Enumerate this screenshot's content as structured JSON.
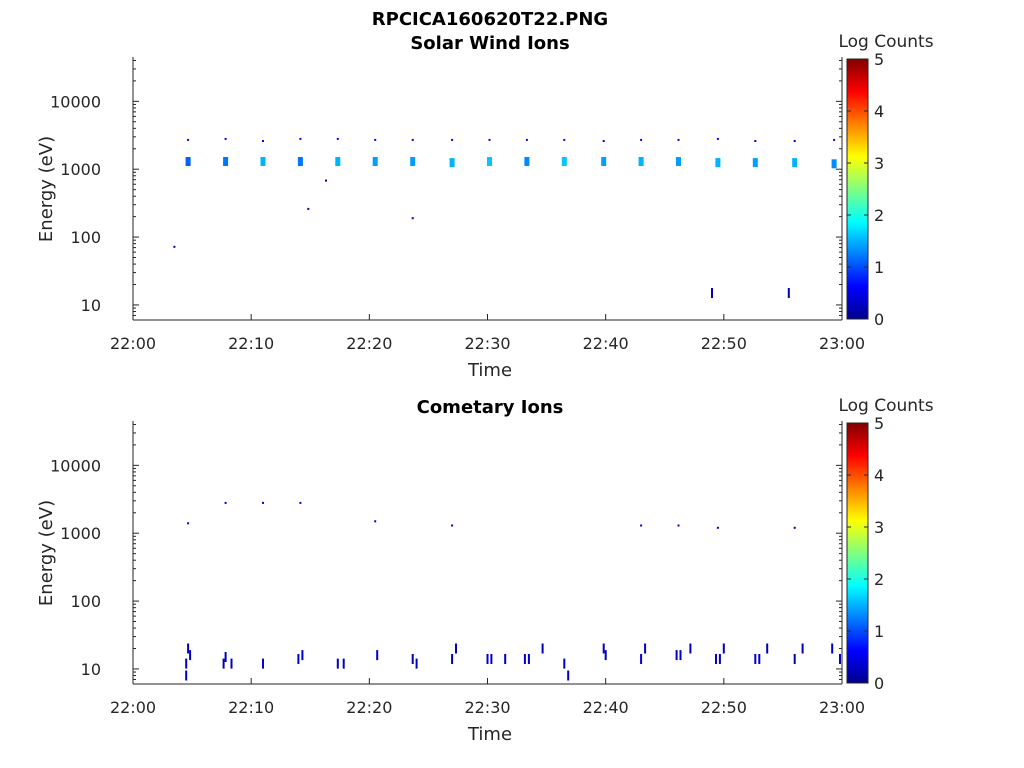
{
  "figure_title": "RPCICA160620T22.PNG",
  "colors": {
    "cmap": "jet",
    "axis": "#262626",
    "background": "#ffffff"
  },
  "chart_data": [
    {
      "type": "heatmap",
      "title": "Solar Wind Ions",
      "xlabel": "Time",
      "ylabel": "Energy (eV)",
      "ylog": true,
      "xlim": [
        "22:00",
        "23:00"
      ],
      "ylim": [
        6,
        45000
      ],
      "x_ticks": [
        "22:00",
        "22:10",
        "22:20",
        "22:30",
        "22:40",
        "22:50",
        "23:00"
      ],
      "y_ticks": [
        "10",
        "100",
        "1000",
        "10000"
      ],
      "colorbar": {
        "label": "Log Counts",
        "min": 0,
        "max": 5,
        "ticks": [
          "0",
          "1",
          "2",
          "3",
          "4",
          "5"
        ]
      },
      "cells": [
        {
          "t": "22:03:30",
          "e": 72,
          "v": 0.3
        },
        {
          "t": "22:04:40",
          "e": 2700,
          "v": 0.6
        },
        {
          "t": "22:04:40",
          "e": 1300,
          "v": 1.1
        },
        {
          "t": "22:07:50",
          "e": 2800,
          "v": 0.6
        },
        {
          "t": "22:07:50",
          "e": 1300,
          "v": 1.2
        },
        {
          "t": "22:11:00",
          "e": 2600,
          "v": 0.6
        },
        {
          "t": "22:11:00",
          "e": 1300,
          "v": 1.5
        },
        {
          "t": "22:14:10",
          "e": 2800,
          "v": 0.6
        },
        {
          "t": "22:14:10",
          "e": 1300,
          "v": 1.2
        },
        {
          "t": "22:14:50",
          "e": 260,
          "v": 0.3
        },
        {
          "t": "22:16:20",
          "e": 680,
          "v": 0.3
        },
        {
          "t": "22:17:20",
          "e": 2800,
          "v": 0.6
        },
        {
          "t": "22:17:20",
          "e": 1300,
          "v": 1.5
        },
        {
          "t": "22:20:30",
          "e": 2700,
          "v": 0.6
        },
        {
          "t": "22:20:30",
          "e": 1300,
          "v": 1.4
        },
        {
          "t": "22:23:40",
          "e": 190,
          "v": 0.3
        },
        {
          "t": "22:23:40",
          "e": 2700,
          "v": 0.6
        },
        {
          "t": "22:23:40",
          "e": 1300,
          "v": 1.4
        },
        {
          "t": "22:27:00",
          "e": 2700,
          "v": 0.6
        },
        {
          "t": "22:27:00",
          "e": 1250,
          "v": 1.5
        },
        {
          "t": "22:30:10",
          "e": 2700,
          "v": 0.6
        },
        {
          "t": "22:30:10",
          "e": 1300,
          "v": 1.6
        },
        {
          "t": "22:33:20",
          "e": 2700,
          "v": 0.6
        },
        {
          "t": "22:33:20",
          "e": 1300,
          "v": 1.3
        },
        {
          "t": "22:36:30",
          "e": 2700,
          "v": 0.6
        },
        {
          "t": "22:36:30",
          "e": 1300,
          "v": 1.6
        },
        {
          "t": "22:39:50",
          "e": 2600,
          "v": 0.6
        },
        {
          "t": "22:39:50",
          "e": 1300,
          "v": 1.4
        },
        {
          "t": "22:43:00",
          "e": 2700,
          "v": 0.6
        },
        {
          "t": "22:43:00",
          "e": 1300,
          "v": 1.5
        },
        {
          "t": "22:46:10",
          "e": 2700,
          "v": 0.6
        },
        {
          "t": "22:46:10",
          "e": 1300,
          "v": 1.4
        },
        {
          "t": "22:49:00",
          "e": 15,
          "v": 0.3
        },
        {
          "t": "22:49:30",
          "e": 2800,
          "v": 0.6
        },
        {
          "t": "22:49:30",
          "e": 1250,
          "v": 1.5
        },
        {
          "t": "22:52:40",
          "e": 2600,
          "v": 0.6
        },
        {
          "t": "22:52:40",
          "e": 1250,
          "v": 1.4
        },
        {
          "t": "22:55:30",
          "e": 15,
          "v": 0.3
        },
        {
          "t": "22:56:00",
          "e": 2600,
          "v": 0.6
        },
        {
          "t": "22:56:00",
          "e": 1250,
          "v": 1.5
        },
        {
          "t": "22:59:20",
          "e": 2700,
          "v": 0.6
        },
        {
          "t": "22:59:20",
          "e": 1200,
          "v": 1.3
        }
      ]
    },
    {
      "type": "heatmap",
      "title": "Cometary Ions",
      "xlabel": "Time",
      "ylabel": "Energy (eV)",
      "ylog": true,
      "xlim": [
        "22:00",
        "23:00"
      ],
      "ylim": [
        6,
        45000
      ],
      "x_ticks": [
        "22:00",
        "22:10",
        "22:20",
        "22:30",
        "22:40",
        "22:50",
        "23:00"
      ],
      "y_ticks": [
        "10",
        "100",
        "1000",
        "10000"
      ],
      "colorbar": {
        "label": "Log Counts",
        "min": 0,
        "max": 5,
        "ticks": [
          "0",
          "1",
          "2",
          "3",
          "4",
          "5"
        ]
      },
      "cells": [
        {
          "t": "22:04:40",
          "e": 1400,
          "v": 0.4
        },
        {
          "t": "22:07:50",
          "e": 2800,
          "v": 0.4
        },
        {
          "t": "22:11:00",
          "e": 2800,
          "v": 0.4
        },
        {
          "t": "22:14:10",
          "e": 2800,
          "v": 0.4
        },
        {
          "t": "22:20:30",
          "e": 1500,
          "v": 0.4
        },
        {
          "t": "22:27:00",
          "e": 1300,
          "v": 0.4
        },
        {
          "t": "22:43:00",
          "e": 1300,
          "v": 0.4
        },
        {
          "t": "22:46:10",
          "e": 1300,
          "v": 0.4
        },
        {
          "t": "22:49:30",
          "e": 1200,
          "v": 0.4
        },
        {
          "t": "22:56:00",
          "e": 1200,
          "v": 0.4
        },
        {
          "t": "22:04:30",
          "e": 8,
          "v": 0.3
        },
        {
          "t": "22:04:30",
          "e": 12,
          "v": 0.3
        },
        {
          "t": "22:04:40",
          "e": 20,
          "v": 0.3
        },
        {
          "t": "22:04:50",
          "e": 16,
          "v": 0.3
        },
        {
          "t": "22:07:40",
          "e": 12,
          "v": 0.3
        },
        {
          "t": "22:07:50",
          "e": 15,
          "v": 0.3
        },
        {
          "t": "22:08:20",
          "e": 12,
          "v": 0.3
        },
        {
          "t": "22:11:00",
          "e": 12,
          "v": 0.4
        },
        {
          "t": "22:14:00",
          "e": 14,
          "v": 0.3
        },
        {
          "t": "22:14:20",
          "e": 16,
          "v": 0.4
        },
        {
          "t": "22:17:20",
          "e": 12,
          "v": 0.3
        },
        {
          "t": "22:17:50",
          "e": 12,
          "v": 0.3
        },
        {
          "t": "22:20:40",
          "e": 16,
          "v": 0.4
        },
        {
          "t": "22:23:40",
          "e": 14,
          "v": 0.3
        },
        {
          "t": "22:24:00",
          "e": 12,
          "v": 0.3
        },
        {
          "t": "22:27:00",
          "e": 14,
          "v": 0.3
        },
        {
          "t": "22:27:20",
          "e": 20,
          "v": 0.3
        },
        {
          "t": "22:30:00",
          "e": 14,
          "v": 0.4
        },
        {
          "t": "22:30:20",
          "e": 14,
          "v": 0.4
        },
        {
          "t": "22:31:30",
          "e": 14,
          "v": 0.3
        },
        {
          "t": "22:33:10",
          "e": 14,
          "v": 0.4
        },
        {
          "t": "22:33:30",
          "e": 14,
          "v": 0.4
        },
        {
          "t": "22:34:40",
          "e": 20,
          "v": 0.3
        },
        {
          "t": "22:36:30",
          "e": 12,
          "v": 0.3
        },
        {
          "t": "22:36:50",
          "e": 8,
          "v": 0.3
        },
        {
          "t": "22:39:50",
          "e": 20,
          "v": 0.3
        },
        {
          "t": "22:40:00",
          "e": 16,
          "v": 0.3
        },
        {
          "t": "22:43:00",
          "e": 14,
          "v": 0.4
        },
        {
          "t": "22:43:20",
          "e": 20,
          "v": 0.3
        },
        {
          "t": "22:46:00",
          "e": 16,
          "v": 0.3
        },
        {
          "t": "22:46:20",
          "e": 16,
          "v": 0.4
        },
        {
          "t": "22:47:10",
          "e": 20,
          "v": 0.3
        },
        {
          "t": "22:49:20",
          "e": 14,
          "v": 0.4
        },
        {
          "t": "22:49:40",
          "e": 14,
          "v": 0.3
        },
        {
          "t": "22:50:00",
          "e": 20,
          "v": 0.3
        },
        {
          "t": "22:52:40",
          "e": 14,
          "v": 0.4
        },
        {
          "t": "22:53:00",
          "e": 14,
          "v": 0.4
        },
        {
          "t": "22:53:40",
          "e": 20,
          "v": 0.3
        },
        {
          "t": "22:56:00",
          "e": 14,
          "v": 0.3
        },
        {
          "t": "22:56:40",
          "e": 20,
          "v": 0.3
        },
        {
          "t": "22:59:10",
          "e": 20,
          "v": 0.3
        },
        {
          "t": "22:59:50",
          "e": 14,
          "v": 0.3
        }
      ]
    }
  ]
}
